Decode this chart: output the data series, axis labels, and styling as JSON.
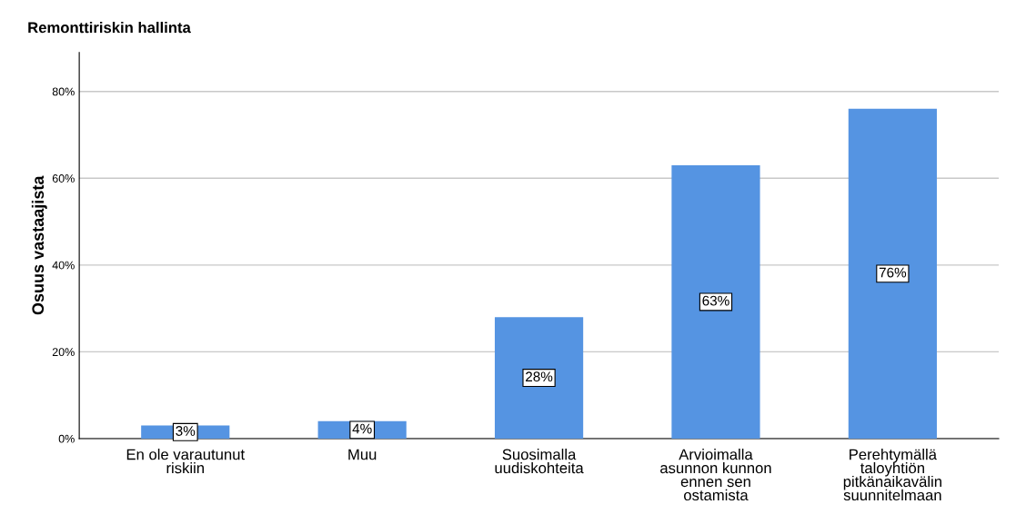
{
  "chart_data": {
    "type": "bar",
    "title": "Remonttiriskin hallinta",
    "ylabel": "Osuus vastaajista",
    "categories": [
      "En ole varautunut\nriskiin",
      "Muu",
      "Suosimalla\nuudiskohteita",
      "Arvioimalla\nasunnon kunnon\nennen sen\nostamista",
      "Perehtymällä\ntaloyhtiön\npitkänaikavälin\nsuunnitelmaan"
    ],
    "values": [
      3,
      4,
      28,
      63,
      76
    ],
    "value_labels": [
      "3%",
      "4%",
      "28%",
      "63%",
      "76%"
    ],
    "color": "#5594e2",
    "ylim": [
      0,
      89
    ],
    "yticks": [
      {
        "value": 0,
        "label": "0%"
      },
      {
        "value": 20,
        "label": "20%"
      },
      {
        "value": 40,
        "label": "40%"
      },
      {
        "value": 60,
        "label": "60%"
      },
      {
        "value": 80,
        "label": "80%"
      }
    ],
    "grid": "y",
    "legend": false
  }
}
